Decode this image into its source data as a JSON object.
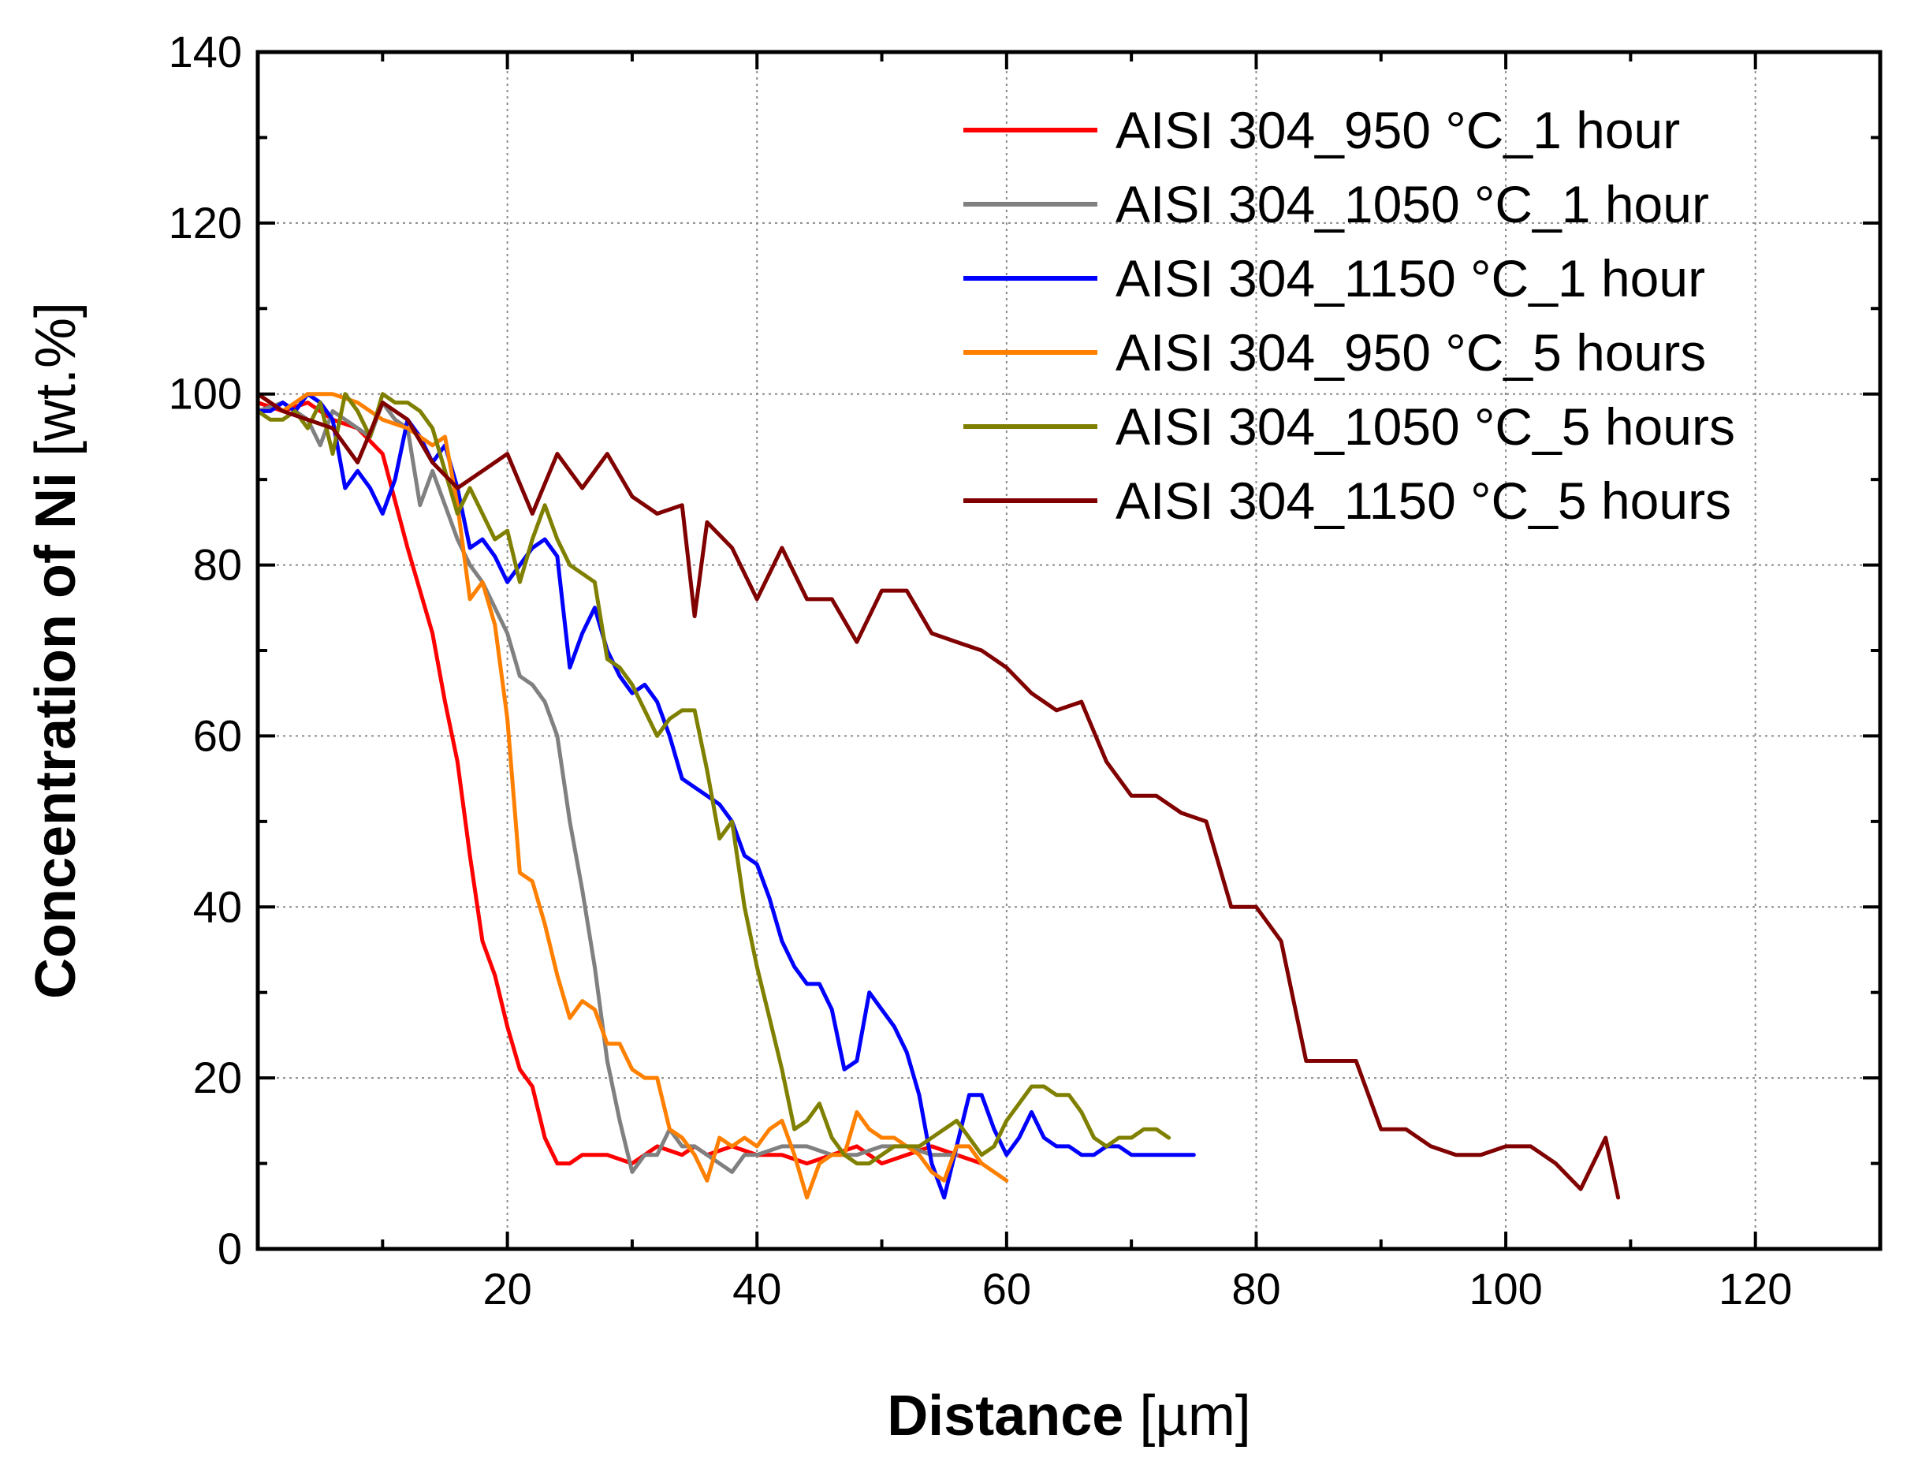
{
  "chart_data": {
    "type": "line",
    "title": "",
    "xlabel": {
      "bold": "Distance",
      "normal": " [µm]"
    },
    "ylabel": {
      "bold": "Concentration of Ni",
      "normal": " [wt.%]"
    },
    "xlim": [
      0,
      130
    ],
    "ylim": [
      0,
      140
    ],
    "xticks": [
      20,
      40,
      60,
      80,
      100,
      120
    ],
    "yticks": [
      0,
      20,
      40,
      60,
      80,
      100,
      120,
      140
    ],
    "xminor": [
      10,
      30,
      50,
      70,
      90,
      110
    ],
    "yminor": [
      10,
      30,
      50,
      70,
      90,
      110,
      130
    ],
    "grid": true,
    "legend_position": "top-right",
    "series": [
      {
        "name": "AISI 304_950 °C_1 hour",
        "color": "#ff0000",
        "x": [
          0,
          2,
          4,
          6,
          8,
          10,
          12,
          14,
          15,
          16,
          17,
          18,
          19,
          20,
          21,
          22,
          23,
          24,
          25,
          26,
          27,
          28,
          30,
          32,
          34,
          35,
          36,
          38,
          40,
          42,
          44,
          46,
          48,
          50,
          52,
          54,
          56,
          58
        ],
        "y": [
          99,
          98,
          99,
          97,
          96,
          93,
          82,
          72,
          64,
          57,
          46,
          36,
          32,
          26,
          21,
          19,
          13,
          10,
          10,
          11,
          11,
          11,
          10,
          12,
          11,
          12,
          11,
          12,
          11,
          11,
          10,
          11,
          12,
          10,
          11,
          12,
          11,
          10
        ]
      },
      {
        "name": "AISI 304_1050 °C_1 hour",
        "color": "#808080",
        "x": [
          0,
          2,
          4,
          5,
          6,
          7,
          8,
          9,
          10,
          11,
          12,
          13,
          14,
          15,
          16,
          17,
          18,
          19,
          20,
          21,
          22,
          23,
          24,
          25,
          26,
          27,
          28,
          29,
          30,
          31,
          32,
          33,
          34,
          35,
          36,
          37,
          38,
          39,
          40,
          42,
          44,
          46,
          48,
          50,
          52,
          54,
          55,
          56
        ],
        "y": [
          98,
          99,
          97,
          94,
          98,
          97,
          96,
          95,
          99,
          97,
          96,
          87,
          91,
          87,
          83,
          80,
          78,
          75,
          72,
          67,
          66,
          64,
          60,
          50,
          42,
          33,
          22,
          15,
          9,
          11,
          11,
          14,
          12,
          12,
          11,
          10,
          9,
          11,
          11,
          12,
          12,
          11,
          11,
          12,
          12,
          11,
          11,
          11
        ]
      },
      {
        "name": "AISI 304_1150 °C_1 hour",
        "color": "#0000ff",
        "x": [
          0,
          1,
          2,
          3,
          4,
          5,
          6,
          7,
          8,
          9,
          10,
          11,
          12,
          13,
          14,
          15,
          16,
          17,
          18,
          19,
          20,
          21,
          22,
          23,
          24,
          25,
          26,
          27,
          28,
          29,
          30,
          31,
          32,
          33,
          34,
          35,
          36,
          37,
          38,
          39,
          40,
          41,
          42,
          43,
          44,
          45,
          46,
          47,
          48,
          49,
          50,
          51,
          52,
          53,
          54,
          55,
          56,
          57,
          58,
          59,
          60,
          61,
          62,
          63,
          64,
          65,
          66,
          67,
          68,
          69,
          70,
          71,
          72,
          73,
          74,
          75
        ],
        "y": [
          98,
          98,
          99,
          98,
          100,
          99,
          97,
          89,
          91,
          89,
          86,
          90,
          97,
          95,
          92,
          94,
          89,
          82,
          83,
          81,
          78,
          80,
          82,
          83,
          81,
          68,
          72,
          75,
          70,
          67,
          65,
          66,
          64,
          60,
          55,
          54,
          53,
          52,
          50,
          46,
          45,
          41,
          36,
          33,
          31,
          31,
          28,
          21,
          22,
          30,
          28,
          26,
          23,
          18,
          10,
          6,
          12,
          18,
          18,
          14,
          11,
          13,
          16,
          13,
          12,
          12,
          11,
          11,
          12,
          12,
          11,
          11,
          11,
          11,
          11,
          11
        ]
      },
      {
        "name": "AISI 304_950 °C_5 hours",
        "color": "#ff8000",
        "x": [
          0,
          2,
          4,
          6,
          8,
          10,
          12,
          14,
          15,
          16,
          17,
          18,
          19,
          20,
          21,
          22,
          23,
          24,
          25,
          26,
          27,
          28,
          29,
          30,
          31,
          32,
          33,
          34,
          35,
          36,
          37,
          38,
          39,
          40,
          41,
          42,
          43,
          44,
          45,
          46,
          47,
          48,
          49,
          50,
          51,
          52,
          53,
          54,
          55,
          56,
          57,
          58,
          59,
          60
        ],
        "y": [
          100,
          98,
          100,
          100,
          99,
          97,
          96,
          94,
          95,
          87,
          76,
          78,
          73,
          62,
          44,
          43,
          38,
          32,
          27,
          29,
          28,
          24,
          24,
          21,
          20,
          20,
          14,
          13,
          11,
          8,
          13,
          12,
          13,
          12,
          14,
          15,
          11,
          6,
          10,
          11,
          11,
          16,
          14,
          13,
          13,
          12,
          11,
          9,
          8,
          12,
          12,
          10,
          9,
          8
        ]
      },
      {
        "name": "AISI 304_1050 °C_5 hours",
        "color": "#808000",
        "x": [
          0,
          1,
          2,
          3,
          4,
          5,
          6,
          7,
          8,
          9,
          10,
          11,
          12,
          13,
          14,
          15,
          16,
          17,
          18,
          19,
          20,
          21,
          22,
          23,
          24,
          25,
          26,
          27,
          28,
          29,
          30,
          31,
          32,
          33,
          34,
          35,
          36,
          37,
          38,
          39,
          40,
          41,
          42,
          43,
          44,
          45,
          46,
          47,
          48,
          49,
          50,
          51,
          52,
          53,
          54,
          55,
          56,
          57,
          58,
          59,
          60,
          61,
          62,
          63,
          64,
          65,
          66,
          67,
          68,
          69,
          70,
          71,
          72,
          73
        ],
        "y": [
          98,
          97,
          97,
          98,
          96,
          99,
          93,
          100,
          98,
          95,
          100,
          99,
          99,
          98,
          96,
          91,
          86,
          89,
          86,
          83,
          84,
          78,
          83,
          87,
          83,
          80,
          79,
          78,
          69,
          68,
          66,
          63,
          60,
          62,
          63,
          63,
          56,
          48,
          50,
          40,
          33,
          27,
          21,
          14,
          15,
          17,
          13,
          11,
          10,
          10,
          11,
          12,
          12,
          12,
          13,
          14,
          15,
          13,
          11,
          12,
          15,
          17,
          19,
          19,
          18,
          18,
          16,
          13,
          12,
          13,
          13,
          14,
          14,
          13
        ]
      },
      {
        "name": "AISI 304_1150 °C_5 hours",
        "color": "#800000",
        "x": [
          0,
          2,
          4,
          6,
          8,
          10,
          12,
          14,
          16,
          18,
          20,
          22,
          24,
          26,
          28,
          30,
          32,
          34,
          35,
          36,
          38,
          40,
          42,
          44,
          46,
          48,
          50,
          52,
          54,
          56,
          58,
          60,
          62,
          64,
          66,
          68,
          70,
          72,
          74,
          76,
          78,
          80,
          82,
          84,
          86,
          88,
          90,
          92,
          94,
          96,
          98,
          100,
          102,
          104,
          106,
          108,
          109
        ],
        "y": [
          100,
          98,
          97,
          96,
          92,
          99,
          97,
          92,
          89,
          91,
          93,
          86,
          93,
          89,
          93,
          88,
          86,
          87,
          74,
          85,
          82,
          76,
          82,
          76,
          76,
          71,
          77,
          77,
          72,
          71,
          70,
          68,
          65,
          63,
          64,
          57,
          53,
          53,
          51,
          50,
          40,
          40,
          36,
          22,
          22,
          22,
          14,
          14,
          12,
          11,
          11,
          12,
          12,
          10,
          7,
          13,
          6
        ]
      }
    ]
  }
}
